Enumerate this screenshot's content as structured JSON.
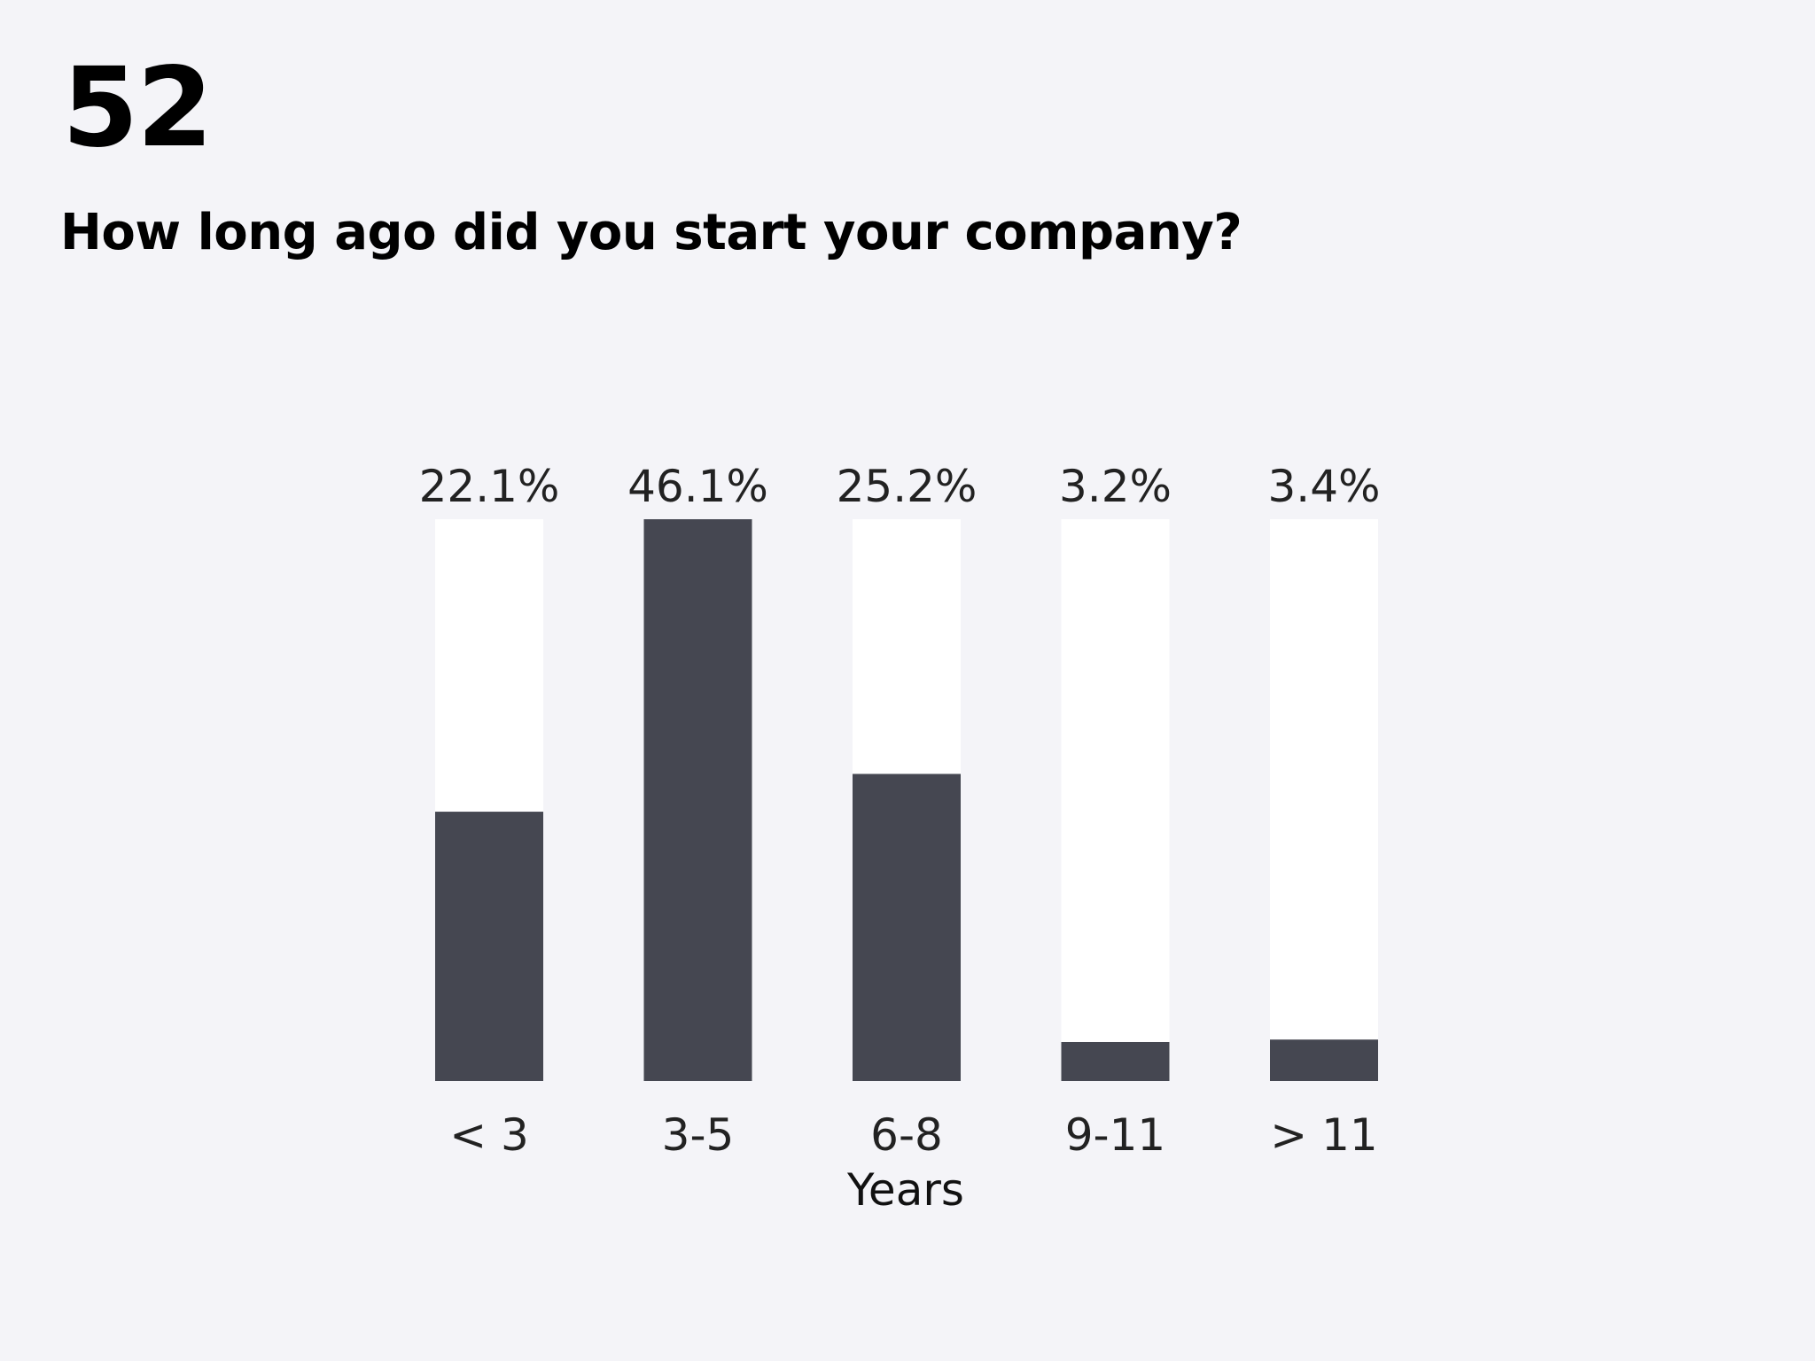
{
  "page": {
    "number": "52",
    "question": "How long ago did you start your company?"
  },
  "colors": {
    "background": "#f4f4f8",
    "track": "#ffffff",
    "bar": "#454751"
  },
  "chart_data": {
    "type": "bar",
    "title": "",
    "categories": [
      "< 3",
      "3-5",
      "6-8",
      "9-11",
      "> 11"
    ],
    "values": [
      22.1,
      46.1,
      25.2,
      3.2,
      3.4
    ],
    "value_labels": [
      "22.1%",
      "46.1%",
      "25.2%",
      "3.2%",
      "3.4%"
    ],
    "xlabel": "Years",
    "ylabel": "",
    "ylim": [
      0,
      46.1
    ],
    "unit": "%",
    "grid": false,
    "legend": "none"
  }
}
